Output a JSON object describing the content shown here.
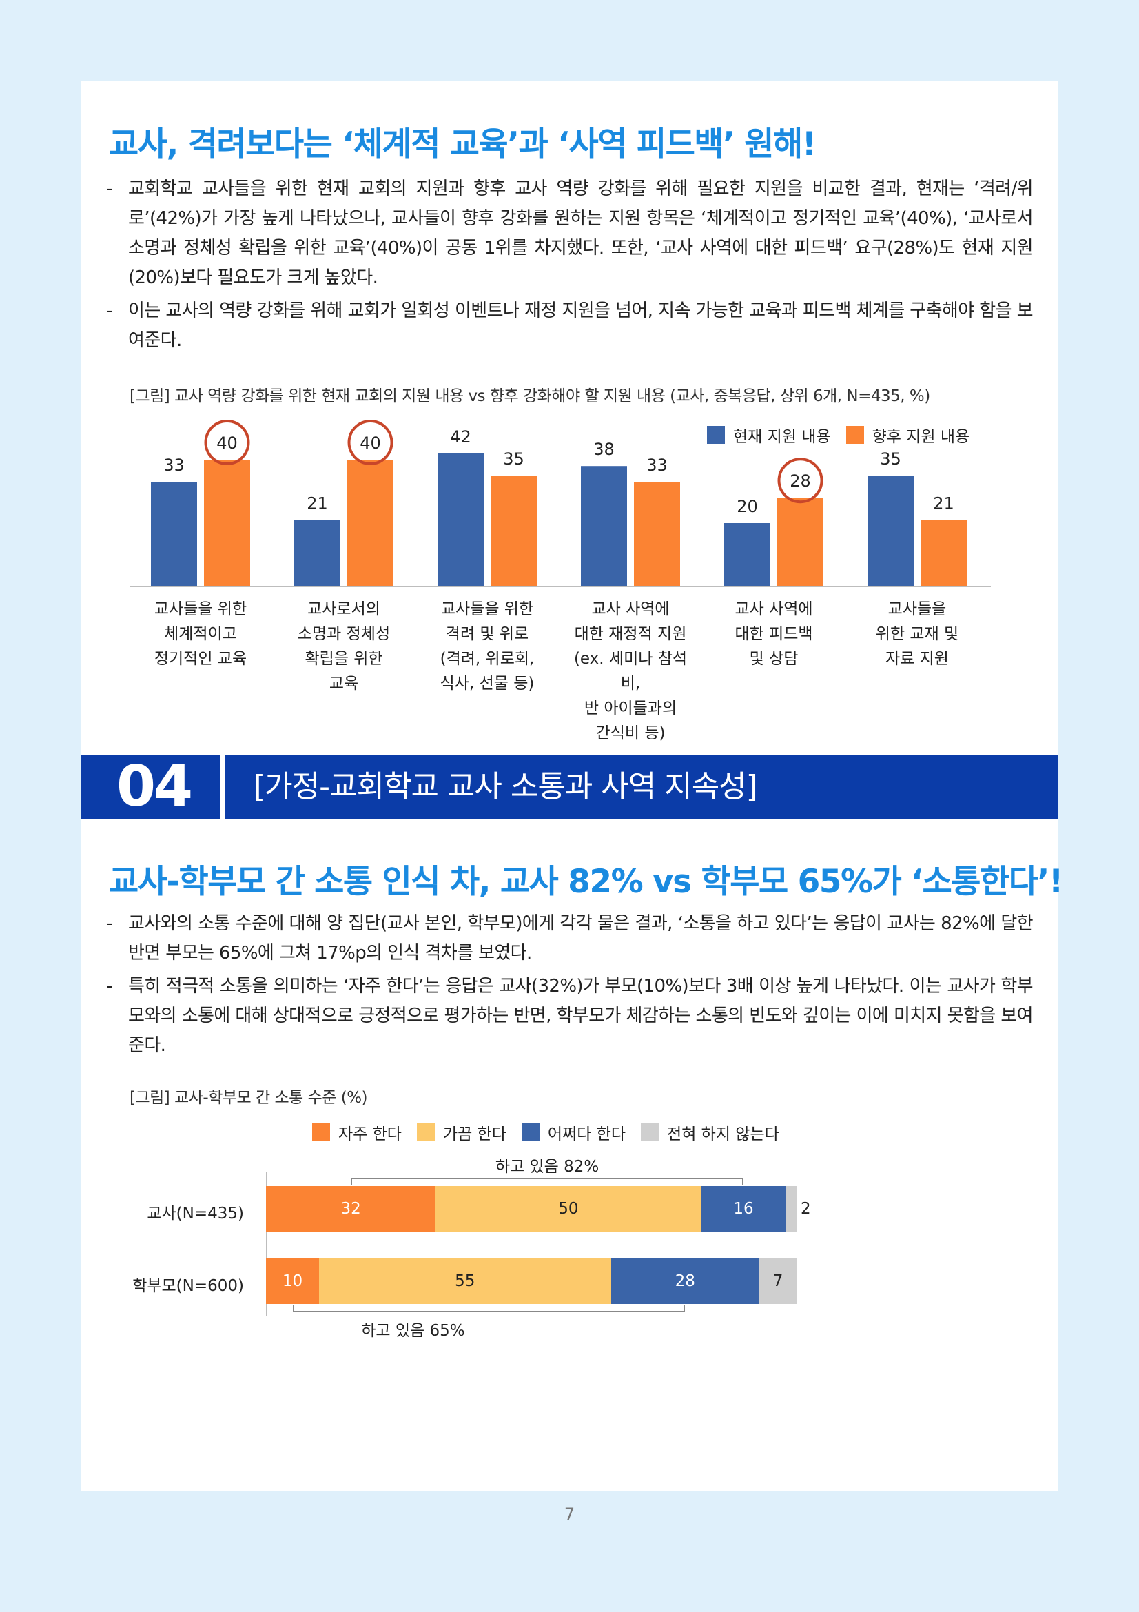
{
  "section1": {
    "title": "교사, 격려보다는 ‘체계적 교육’과 ‘사역 피드백’ 원해!",
    "bullets": [
      "교회학교 교사들을 위한 현재 교회의 지원과 향후 교사 역량 강화를 위해 필요한 지원을 비교한 결과, 현재는 ‘격려/위로’(42%)가 가장 높게 나타났으나, 교사들이 향후 강화를 원하는 지원 항목은 ‘체계적이고 정기적인 교육’(40%), ‘교사로서 소명과 정체성 확립을 위한 교육’(40%)이 공동 1위를 차지했다. 또한, ‘교사 사역에 대한 피드백’ 요구(28%)도 현재 지원(20%)보다 필요도가 크게 높았다.",
      "이는 교사의 역량 강화를 위해 교회가 일회성 이벤트나 재정 지원을 넘어, 지속 가능한 교육과 피드백 체계를 구축해야 함을 보여준다."
    ],
    "caption": "[그림] 교사 역량 강화를 위한 현재 교회의 지원 내용 vs 향후 강화해야 할 지원 내용 (교사, 중복응답, 상위 6개, N=435, %)"
  },
  "section_header": {
    "number": "04",
    "title": "[가정-교회학교 교사 소통과 사역 지속성]"
  },
  "section2": {
    "title": "교사-학부모 간 소통 인식 차, 교사 82% vs 학부모 65%가 ‘소통한다’!",
    "bullets": [
      "교사와의 소통 수준에 대해 양 집단(교사 본인, 학부모)에게 각각 물은 결과, ‘소통을 하고 있다’는 응답이 교사는 82%에 달한 반면 부모는 65%에 그쳐 17%p의 인식 격차를 보였다.",
      "특히 적극적 소통을 의미하는 ‘자주 한다’는 응답은 교사(32%)가 부모(10%)보다 3배 이상 높게 나타났다. 이는 교사가 학부모와의 소통에 대해 상대적으로 긍정적으로 평가하는 반면, 학부모가 체감하는 소통의 빈도와 깊이는 이에 미치지 못함을 보여준다."
    ],
    "caption": "[그림] 교사-학부모 간 소통 수준 (%)"
  },
  "page_number": "7",
  "colors": {
    "blue": "#3a64a8",
    "orange": "#fb8333",
    "yellow": "#fcc96b",
    "gray": "#cfcfcf",
    "title": "#1a8ae0",
    "bar": "#0b3ca8",
    "circle": "#c8462a"
  },
  "chart_data": [
    {
      "type": "bar",
      "categories": [
        "교사들을 위한\n체계적이고\n정기적인 교육",
        "교사로서의\n소명과 정체성\n확립을 위한\n교육",
        "교사들을 위한\n격려 및 위로\n(격려, 위로회,\n식사, 선물 등)",
        "교사 사역에\n대한 재정적 지원\n(ex. 세미나 참석비,\n반 아이들과의\n간식비 등)",
        "교사 사역에\n대한 피드백\n및 상담",
        "교사들을\n위한 교재 및\n자료 지원"
      ],
      "series": [
        {
          "name": "현재 지원 내용",
          "values": [
            33,
            21,
            42,
            38,
            20,
            35
          ],
          "color": "#3a64a8"
        },
        {
          "name": "향후 지원 내용",
          "values": [
            40,
            40,
            35,
            33,
            28,
            21
          ],
          "color": "#fb8333"
        }
      ],
      "highlighted": [
        [
          1,
          0
        ],
        [
          1,
          1
        ],
        [
          1,
          4
        ]
      ],
      "ylim": [
        0,
        45
      ],
      "legend": "top-right"
    },
    {
      "type": "bar",
      "orientation": "horizontal-stacked",
      "categories": [
        "교사(N=435)",
        "학부모(N=600)"
      ],
      "series": [
        {
          "name": "자주 한다",
          "values": [
            32,
            10
          ],
          "color": "#fb8333"
        },
        {
          "name": "가끔 한다",
          "values": [
            50,
            55
          ],
          "color": "#fcc96b"
        },
        {
          "name": "어쩌다 한다",
          "values": [
            16,
            28
          ],
          "color": "#3a64a8"
        },
        {
          "name": "전혀 하지 않는다",
          "values": [
            2,
            7
          ],
          "color": "#cfcfcf"
        }
      ],
      "annotations": [
        "하고 있음 82%",
        "하고 있음 65%"
      ],
      "legend": "top"
    }
  ]
}
